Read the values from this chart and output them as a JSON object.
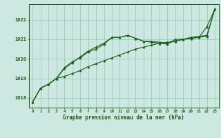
{
  "title": "Graphe pression niveau de la mer (hPa)",
  "xlabel_ticks": [
    0,
    1,
    2,
    3,
    4,
    5,
    6,
    7,
    8,
    9,
    10,
    11,
    12,
    13,
    14,
    15,
    16,
    17,
    18,
    19,
    20,
    21,
    22,
    23
  ],
  "ylim": [
    1017.5,
    1022.8
  ],
  "yticks": [
    1018,
    1019,
    1020,
    1021,
    1022
  ],
  "background_color": "#cce8e0",
  "grid_color": "#99ccbb",
  "line_color": "#1a5c1a",
  "series1": [
    1017.8,
    1018.5,
    1018.7,
    1019.0,
    1019.5,
    1019.8,
    1020.1,
    1020.4,
    1020.6,
    1020.8,
    1021.1,
    1021.1,
    1021.2,
    1021.05,
    1020.9,
    1020.9,
    1020.85,
    1020.8,
    1020.9,
    1021.0,
    1021.1,
    1021.15,
    1021.2,
    1022.55
  ],
  "series2": [
    1017.8,
    1018.5,
    1018.7,
    1019.0,
    1019.55,
    1019.85,
    1020.05,
    1020.35,
    1020.5,
    1020.75,
    1021.1,
    1021.1,
    1021.2,
    1021.05,
    1020.9,
    1020.85,
    1020.8,
    1020.75,
    1021.0,
    1021.0,
    1021.05,
    1021.1,
    1021.65,
    1022.55
  ],
  "series3": [
    1017.8,
    1018.5,
    1018.7,
    1019.0,
    1019.1,
    1019.25,
    1019.4,
    1019.6,
    1019.75,
    1019.9,
    1020.05,
    1020.2,
    1020.35,
    1020.5,
    1020.6,
    1020.7,
    1020.8,
    1020.85,
    1020.9,
    1021.0,
    1021.05,
    1021.1,
    1021.15,
    1022.55
  ]
}
